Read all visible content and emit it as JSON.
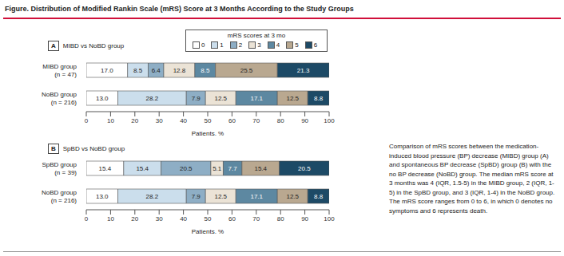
{
  "title": "Figure. Distribution of Modified Rankin Scale (mRS) Score at 3 Months According to the Study Groups",
  "legend_title": "mRS scores at 3 mo",
  "caption": "Comparison of mRS scores between the medication-induced blood pressure (BP) decrease (MIBD) group (A) and spontaneous BP decrease (SpBD) group (B) with the no BP decrease (NoBD) group. The median mRS score at 3 months was 4 (IQR, 1.5-5) in the MIBD group, 2 (IQR, 1-5) in the SpBD group, and 3 (IQR, 1-4) in the NoBD group. The mRS score ranges from 0 to 6, in which 0 denotes no symptoms and 6 represents death.",
  "chart_data": [
    {
      "type": "bar",
      "label": "A",
      "title": "MIBD vs NoBD group",
      "orientation": "horizontal",
      "stacked": true,
      "data_labels": true,
      "legend": "top",
      "categories": [
        "MIBD group (n = 47)",
        "NoBD group (n = 216)"
      ],
      "series": [
        {
          "name": "0",
          "color": "#ffffff",
          "values": [
            17.0,
            13.0
          ],
          "value_labels": [
            "17.0",
            "13.0"
          ]
        },
        {
          "name": "1",
          "color": "#cbdeec",
          "values": [
            8.5,
            28.2
          ],
          "value_labels": [
            "8.5",
            "28.2"
          ]
        },
        {
          "name": "2",
          "color": "#8eaec5",
          "values": [
            6.4,
            7.9
          ],
          "value_labels": [
            "6.4",
            "7.9"
          ]
        },
        {
          "name": "3",
          "color": "#ebe3d6",
          "values": [
            12.8,
            12.5
          ],
          "value_labels": [
            "12.8",
            "12.5"
          ]
        },
        {
          "name": "4",
          "color": "#5d88a1",
          "values": [
            8.5,
            17.1
          ],
          "value_labels": [
            "8.5",
            "17.1"
          ]
        },
        {
          "name": "5",
          "color": "#b9a890",
          "values": [
            25.5,
            12.5
          ],
          "value_labels": [
            "25.5",
            "12.5"
          ]
        },
        {
          "name": "6",
          "color": "#1d4a66",
          "values": [
            21.3,
            8.8
          ],
          "value_labels": [
            "21.3",
            "8.8"
          ]
        }
      ],
      "xlim": [
        0,
        100
      ],
      "xticks": [
        0,
        10,
        20,
        30,
        40,
        50,
        60,
        70,
        80,
        90,
        100
      ],
      "xlabel": "Patients, %"
    },
    {
      "type": "bar",
      "label": "B",
      "title": "SpBD vs NoBD group",
      "orientation": "horizontal",
      "stacked": true,
      "data_labels": true,
      "categories": [
        "SpBD group (n = 39)",
        "NoBD group (n = 216)"
      ],
      "series": [
        {
          "name": "0",
          "color": "#ffffff",
          "values": [
            15.4,
            13.0
          ],
          "value_labels": [
            "15.4",
            "13.0"
          ]
        },
        {
          "name": "1",
          "color": "#cbdeec",
          "values": [
            15.4,
            28.2
          ],
          "value_labels": [
            "15.4",
            "28.2"
          ]
        },
        {
          "name": "2",
          "color": "#8eaec5",
          "values": [
            20.5,
            7.9
          ],
          "value_labels": [
            "20.5",
            "7.9"
          ]
        },
        {
          "name": "3",
          "color": "#ebe3d6",
          "values": [
            5.1,
            12.5
          ],
          "value_labels": [
            "5.1",
            "12.5"
          ]
        },
        {
          "name": "4",
          "color": "#5d88a1",
          "values": [
            7.7,
            17.1
          ],
          "value_labels": [
            "7.7",
            "17.1"
          ]
        },
        {
          "name": "5",
          "color": "#b9a890",
          "values": [
            15.4,
            12.5
          ],
          "value_labels": [
            "15.4",
            "12.5"
          ]
        },
        {
          "name": "6",
          "color": "#1d4a66",
          "values": [
            20.5,
            8.8
          ],
          "value_labels": [
            "20.5",
            "8.8"
          ]
        }
      ],
      "xlim": [
        0,
        100
      ],
      "xticks": [
        0,
        10,
        20,
        30,
        40,
        50,
        60,
        70,
        80,
        90,
        100
      ],
      "xlabel": "Patients, %"
    }
  ]
}
